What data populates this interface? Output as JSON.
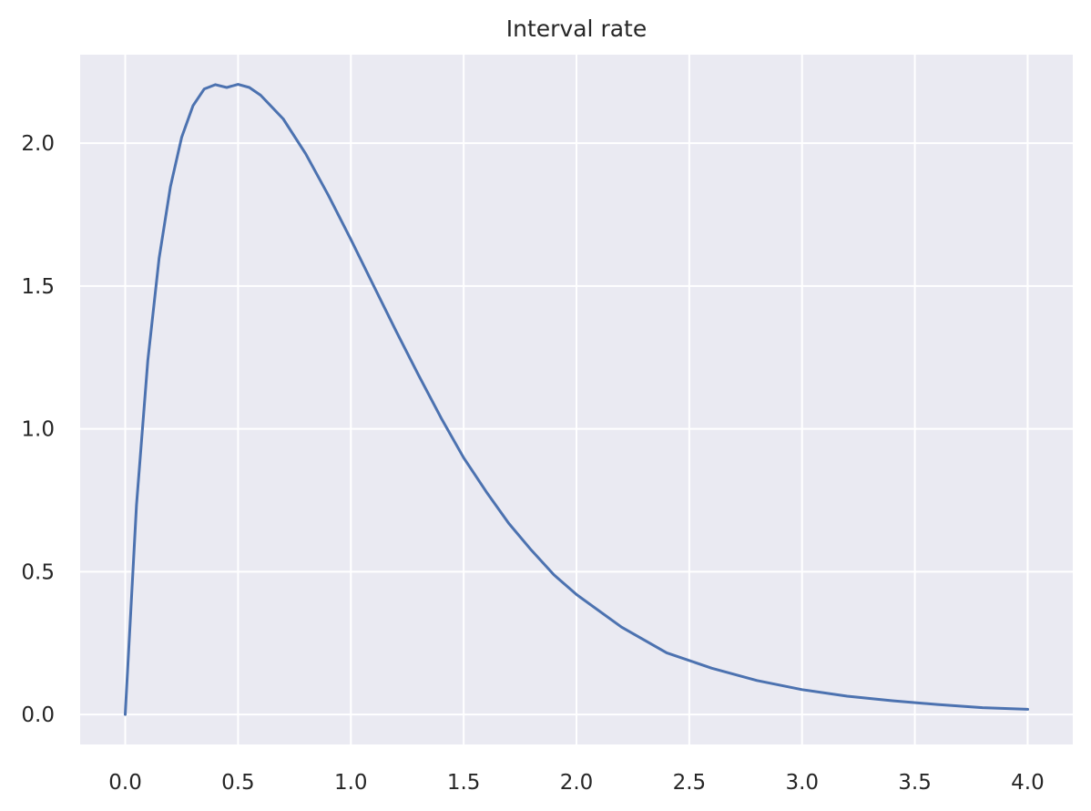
{
  "chart_data": {
    "type": "line",
    "title": "Interval rate",
    "xlabel": "",
    "ylabel": "",
    "xlim": [
      -0.2,
      4.2
    ],
    "ylim": [
      -0.105,
      2.31
    ],
    "xticks": [
      0.0,
      0.5,
      1.0,
      1.5,
      2.0,
      2.5,
      3.0,
      3.5,
      4.0
    ],
    "xtick_labels": [
      "0.0",
      "0.5",
      "1.0",
      "1.5",
      "2.0",
      "2.5",
      "3.0",
      "3.5",
      "4.0"
    ],
    "yticks": [
      0.0,
      0.5,
      1.0,
      1.5,
      2.0
    ],
    "ytick_labels": [
      "0.0",
      "0.5",
      "1.0",
      "1.5",
      "2.0"
    ],
    "grid": true,
    "legend": "none",
    "series": [
      {
        "color": "#4c72b0",
        "x": [
          0.0,
          0.05,
          0.1,
          0.15,
          0.2,
          0.25,
          0.3,
          0.35,
          0.4,
          0.45,
          0.5,
          0.55,
          0.6,
          0.7,
          0.8,
          0.9,
          1.0,
          1.1,
          1.2,
          1.3,
          1.4,
          1.5,
          1.6,
          1.7,
          1.8,
          1.9,
          2.0,
          2.2,
          2.4,
          2.6,
          2.8,
          3.0,
          3.2,
          3.4,
          3.6,
          3.8,
          4.0
        ],
        "y": [
          0.0,
          0.734,
          1.239,
          1.597,
          1.847,
          2.021,
          2.131,
          2.19,
          2.205,
          2.195,
          2.206,
          2.195,
          2.168,
          2.085,
          1.963,
          1.818,
          1.663,
          1.503,
          1.343,
          1.188,
          1.038,
          0.899,
          0.78,
          0.669,
          0.575,
          0.489,
          0.42,
          0.306,
          0.216,
          0.162,
          0.119,
          0.087,
          0.064,
          0.048,
          0.035,
          0.024,
          0.018
        ]
      }
    ]
  },
  "colors": {
    "plot_background": "#eaeaf2",
    "grid": "#ffffff",
    "text": "#262626",
    "line": "#4c72b0"
  }
}
